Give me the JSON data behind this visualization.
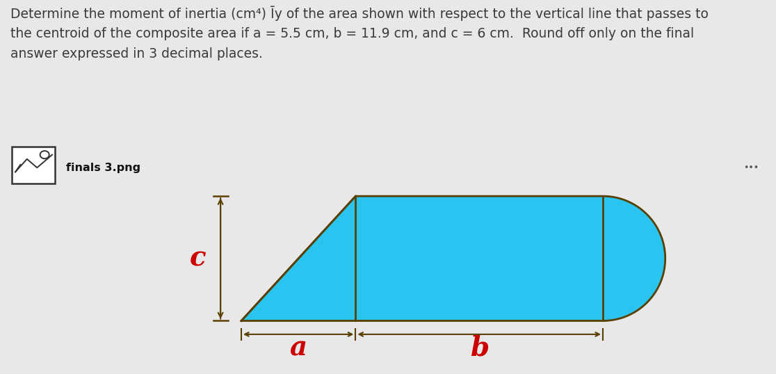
{
  "title_text": "Determine the moment of inertia (cm⁴) Īy of the area shown with respect to the vertical line that passes to\nthe centroid of the composite area if a = 5.5 cm, b = 11.9 cm, and c = 6 cm.  Round off only on the final\nanswer expressed in 3 decimal places.",
  "filename_label": "finals 3.png",
  "label_a": "a",
  "label_b": "b",
  "label_c": "c",
  "fill_color": "#29C4F0",
  "outline_color": "#5A4000",
  "arrow_color": "#5A4000",
  "dim_label_color": "#CC0000",
  "page_bg": "#E8E8E8",
  "panel_bg": "#F2F0EE",
  "text_color": "#3A3A3A",
  "title_fontsize": 13.5,
  "label_fontsize": 28,
  "a": 5.5,
  "b": 11.9,
  "c": 6.0
}
